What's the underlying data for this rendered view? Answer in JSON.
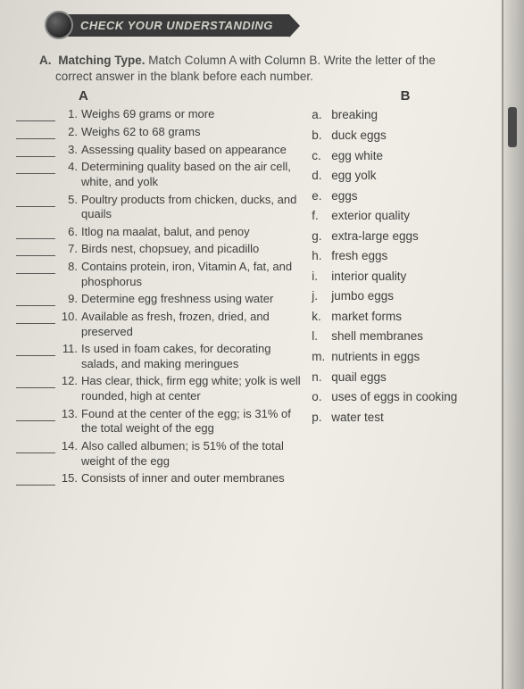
{
  "banner": {
    "title": "CHECK YOUR UNDERSTANDING"
  },
  "instructions": {
    "section": "A.",
    "lead": "Matching Type.",
    "body1": "Match Column A with Column B. Write the letter of the",
    "body2": "correct answer in the blank before each number."
  },
  "headers": {
    "a": "A",
    "b": "B"
  },
  "colA": [
    {
      "n": "1.",
      "t": "Weighs 69 grams or more"
    },
    {
      "n": "2.",
      "t": "Weighs 62 to 68 grams"
    },
    {
      "n": "3.",
      "t": "Assessing quality based on appearance"
    },
    {
      "n": "4.",
      "t": "Determining quality based on the air cell, white, and yolk"
    },
    {
      "n": "5.",
      "t": "Poultry products from chicken, ducks, and quails"
    },
    {
      "n": "6.",
      "t": "Itlog na maalat, balut, and penoy"
    },
    {
      "n": "7.",
      "t": "Birds nest, chopsuey, and picadillo"
    },
    {
      "n": "8.",
      "t": "Contains protein, iron, Vitamin A, fat, and phosphorus"
    },
    {
      "n": "9.",
      "t": "Determine egg freshness using water"
    },
    {
      "n": "10.",
      "t": "Available as fresh, frozen, dried, and preserved"
    },
    {
      "n": "11.",
      "t": "Is used in foam cakes, for decorating salads, and making meringues"
    },
    {
      "n": "12.",
      "t": "Has clear, thick, firm egg white; yolk is well rounded, high at center"
    },
    {
      "n": "13.",
      "t": "Found at the center of the egg; is 31% of the total weight of the egg"
    },
    {
      "n": "14.",
      "t": "Also called albumen; is 51% of the total weight of the egg"
    },
    {
      "n": "15.",
      "t": "Consists of inner and outer membranes"
    }
  ],
  "colB": [
    {
      "l": "a.",
      "t": "breaking"
    },
    {
      "l": "b.",
      "t": "duck eggs"
    },
    {
      "l": "c.",
      "t": "egg white"
    },
    {
      "l": "d.",
      "t": "egg yolk"
    },
    {
      "l": "e.",
      "t": "eggs"
    },
    {
      "l": "f.",
      "t": "exterior quality"
    },
    {
      "l": "g.",
      "t": "extra-large eggs"
    },
    {
      "l": "h.",
      "t": "fresh eggs"
    },
    {
      "l": "i.",
      "t": "interior quality"
    },
    {
      "l": "j.",
      "t": "jumbo eggs"
    },
    {
      "l": "k.",
      "t": "market forms"
    },
    {
      "l": "l.",
      "t": "shell membranes"
    },
    {
      "l": "m.",
      "t": "nutrients in eggs"
    },
    {
      "l": "n.",
      "t": "quail eggs"
    },
    {
      "l": "o.",
      "t": "uses of eggs in cooking"
    },
    {
      "l": "p.",
      "t": "water test"
    }
  ]
}
